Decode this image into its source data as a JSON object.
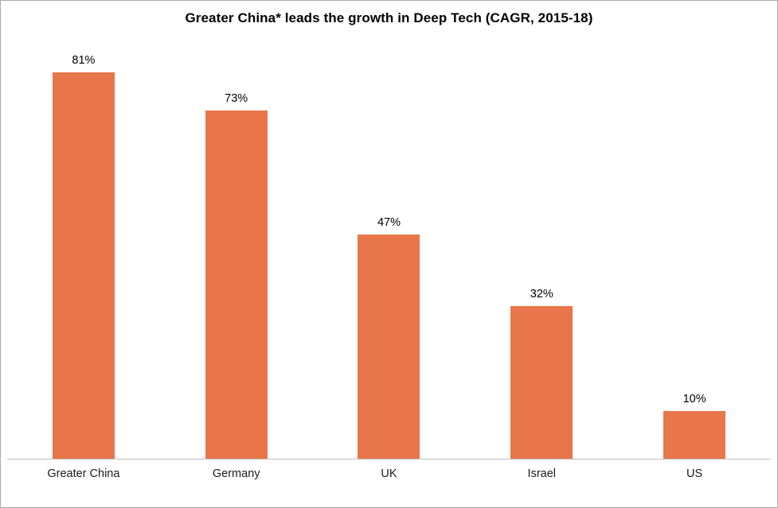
{
  "title": "Greater China* leads the growth in Deep Tech (CAGR, 2015-18)",
  "colors": {
    "bar": "#e8764a",
    "axis_line": "#bfbfbf",
    "border": "#ababab",
    "text": "#000000"
  },
  "chart_data": {
    "type": "bar",
    "title": "Greater China* leads the growth in Deep Tech (CAGR, 2015-18)",
    "categories": [
      "Greater China",
      "Germany",
      "UK",
      "Israel",
      "US"
    ],
    "values": [
      81,
      73,
      47,
      32,
      10
    ],
    "value_labels": [
      "81%",
      "73%",
      "47%",
      "32%",
      "10%"
    ],
    "xlabel": "",
    "ylabel": "",
    "ylim": [
      0,
      90
    ],
    "grid": false,
    "legend": false,
    "y_axis_visible": false,
    "data_labels_position": "above-bar"
  }
}
